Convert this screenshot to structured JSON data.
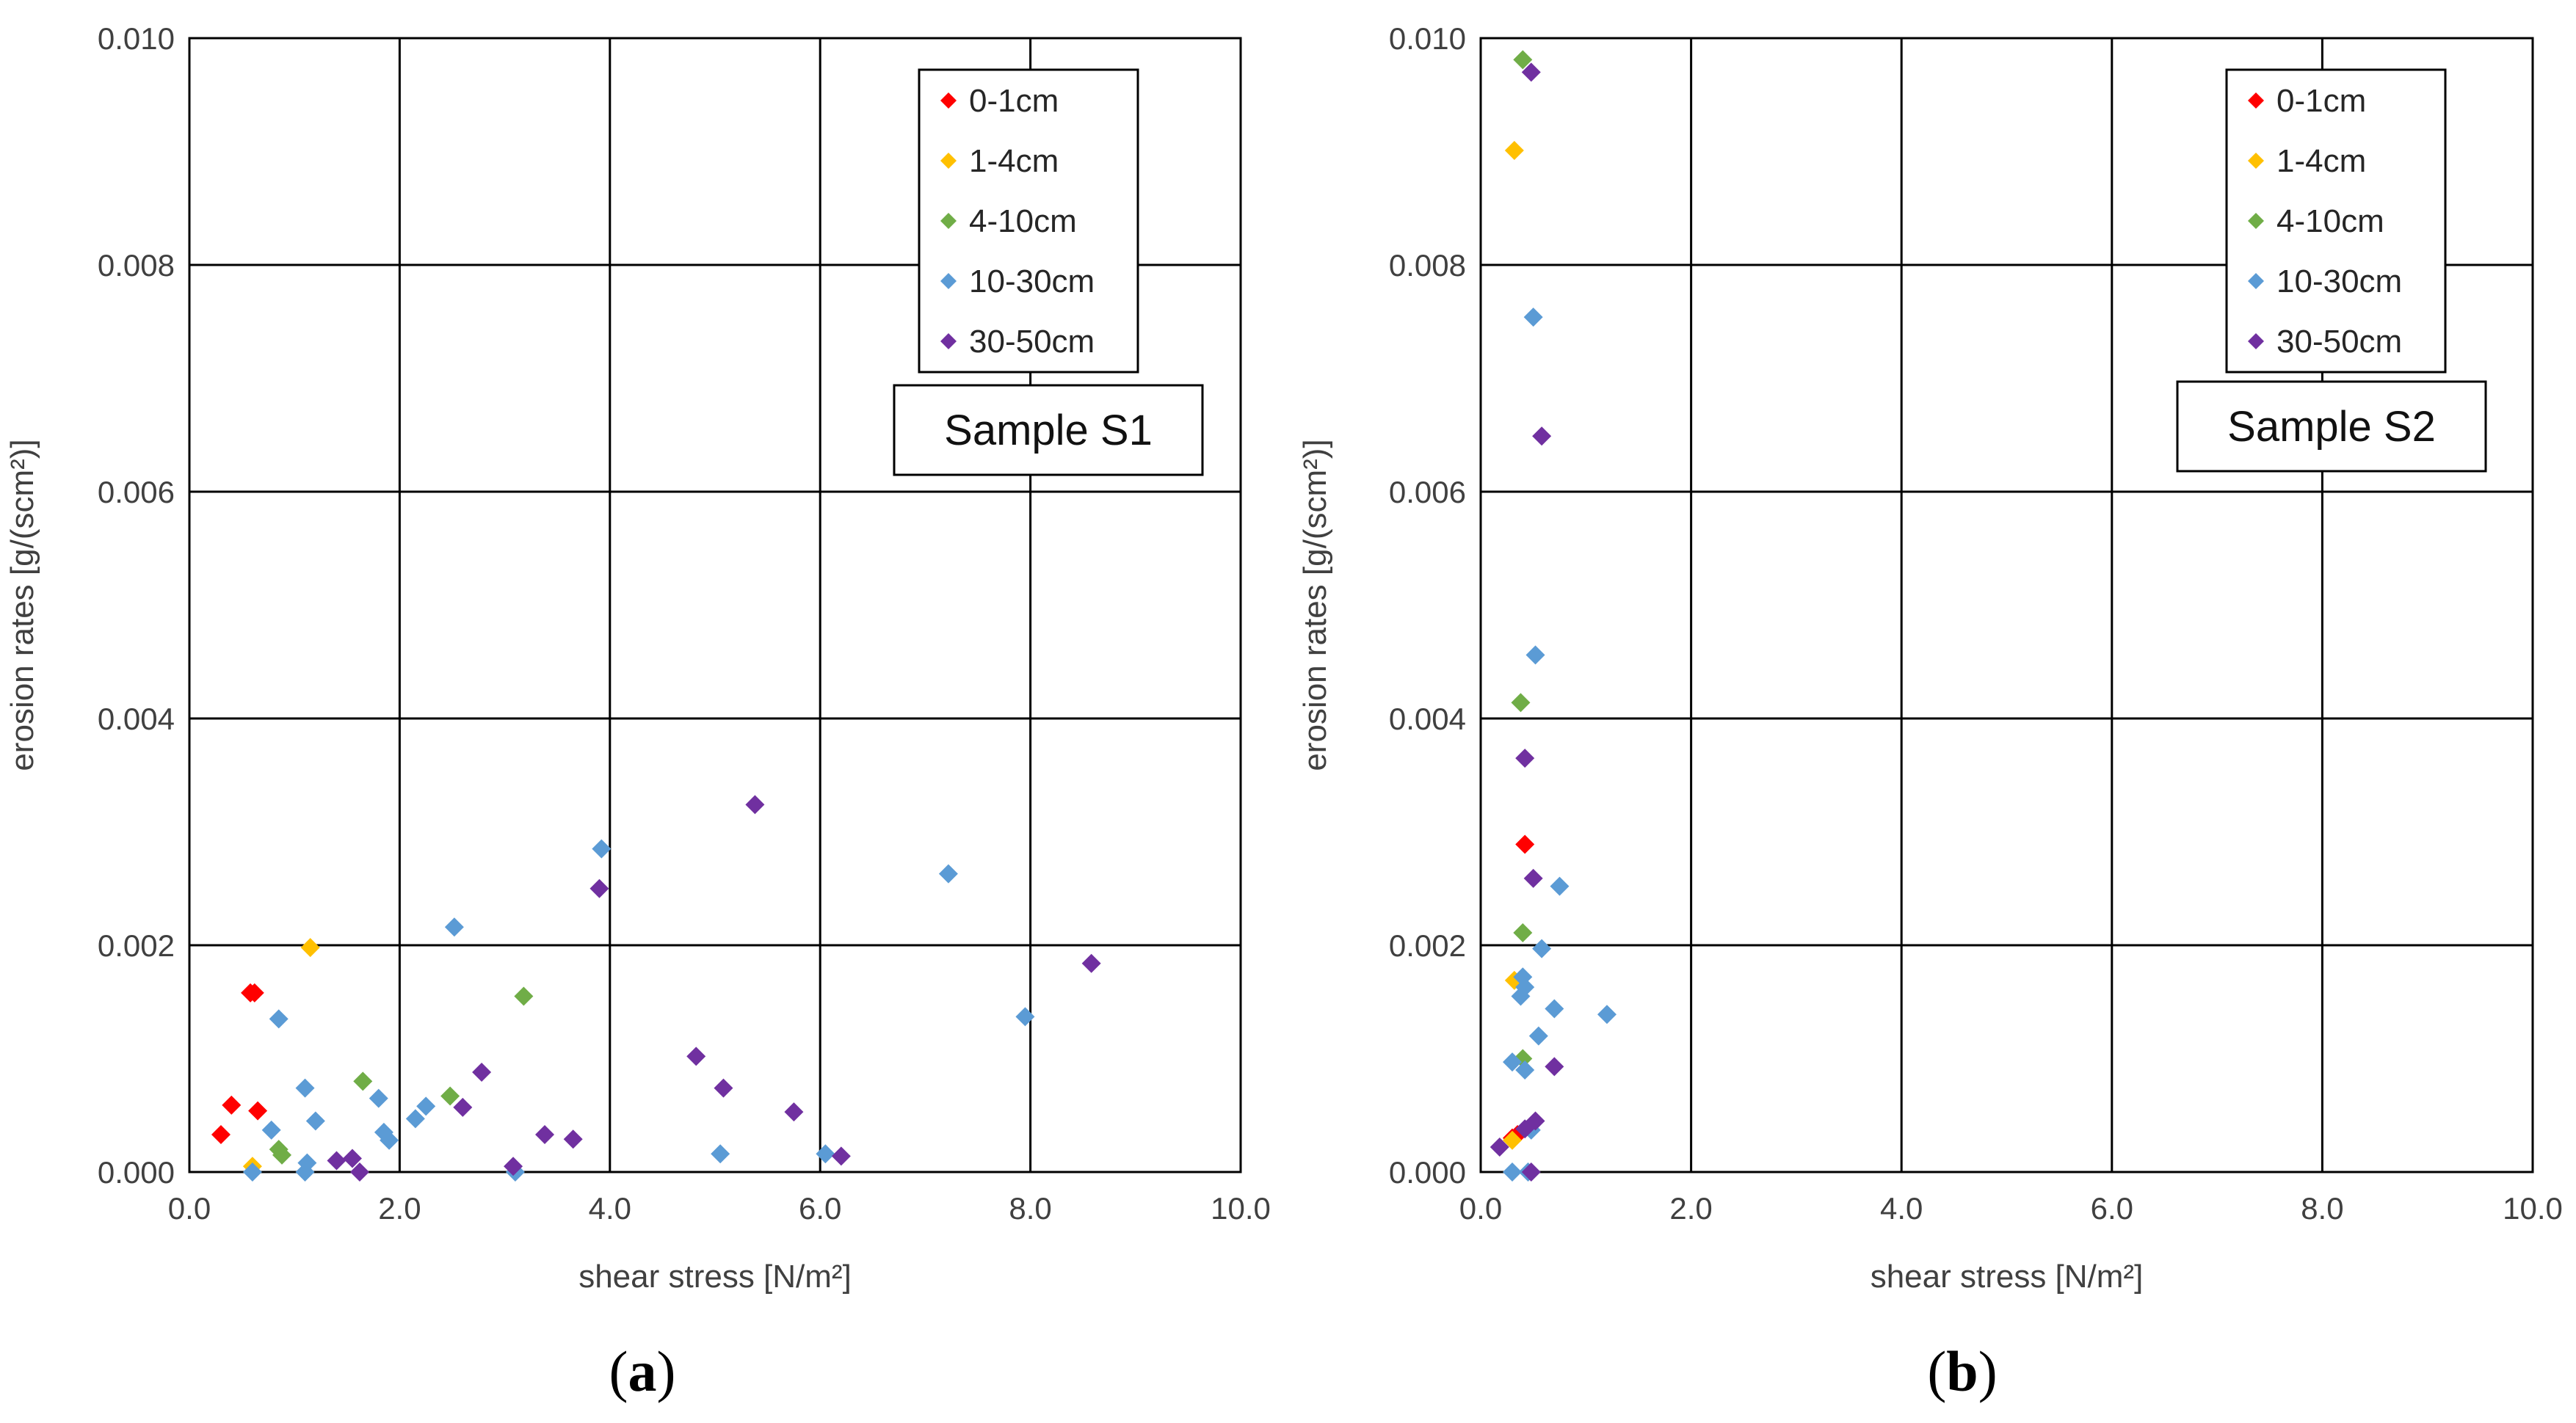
{
  "chart_data": [
    {
      "type": "scatter",
      "panel_label": "(a)",
      "panel_label_letter": "a",
      "annotation": "Sample S1",
      "xlabel": "shear stress [N/m²]",
      "ylabel": "erosion rates [g/(scm²)]",
      "xlim": [
        0,
        10
      ],
      "ylim": [
        0,
        0.01
      ],
      "x_ticks": [
        "0.0",
        "2.0",
        "4.0",
        "6.0",
        "8.0",
        "10.0"
      ],
      "y_ticks": [
        "0.000",
        "0.002",
        "0.004",
        "0.006",
        "0.008",
        "0.010"
      ],
      "grid": true,
      "legend_position": "top-right",
      "series": [
        {
          "name": "0-1cm",
          "color": "#FF0000",
          "points": [
            [
              0.3,
              0.00033
            ],
            [
              0.4,
              0.00059
            ],
            [
              0.58,
              0.00158
            ],
            [
              0.62,
              0.00158
            ],
            [
              0.65,
              0.00054
            ]
          ]
        },
        {
          "name": "1-4cm",
          "color": "#FFC000",
          "points": [
            [
              1.15,
              0.00198
            ],
            [
              0.6,
              5e-05
            ]
          ]
        },
        {
          "name": "4-10cm",
          "color": "#70AD47",
          "points": [
            [
              0.85,
              0.0002
            ],
            [
              0.88,
              0.00015
            ],
            [
              1.65,
              0.0008
            ],
            [
              2.48,
              0.00067
            ],
            [
              3.18,
              0.00155
            ]
          ]
        },
        {
          "name": "10-30cm",
          "color": "#5B9BD5",
          "points": [
            [
              0.6,
              0.0
            ],
            [
              0.78,
              0.00037
            ],
            [
              0.85,
              0.00135
            ],
            [
              1.1,
              0.00074
            ],
            [
              1.1,
              0.0
            ],
            [
              1.12,
              8e-05
            ],
            [
              1.2,
              0.00045
            ],
            [
              1.8,
              0.00065
            ],
            [
              1.85,
              0.00035
            ],
            [
              1.9,
              0.00028
            ],
            [
              2.15,
              0.00047
            ],
            [
              2.25,
              0.00058
            ],
            [
              2.52,
              0.00216
            ],
            [
              3.1,
              0.0
            ],
            [
              3.92,
              0.00285
            ],
            [
              5.05,
              0.00016
            ],
            [
              6.05,
              0.00016
            ],
            [
              7.22,
              0.00263
            ],
            [
              7.95,
              0.00137
            ]
          ]
        },
        {
          "name": "30-50cm",
          "color": "#7030A0",
          "points": [
            [
              1.4,
              0.0001
            ],
            [
              1.55,
              0.00012
            ],
            [
              1.62,
              0.0
            ],
            [
              2.6,
              0.00057
            ],
            [
              2.78,
              0.00088
            ],
            [
              3.08,
              5e-05
            ],
            [
              3.38,
              0.00033
            ],
            [
              3.65,
              0.00029
            ],
            [
              3.9,
              0.0025
            ],
            [
              4.82,
              0.00102
            ],
            [
              5.08,
              0.00074
            ],
            [
              5.38,
              0.00324
            ],
            [
              5.75,
              0.00053
            ],
            [
              6.2,
              0.00014
            ],
            [
              8.58,
              0.00184
            ]
          ]
        }
      ]
    },
    {
      "type": "scatter",
      "panel_label": "(b)",
      "panel_label_letter": "b",
      "annotation": "Sample S2",
      "xlabel": "shear stress [N/m²]",
      "ylabel": "erosion rates [g/(scm²)]",
      "xlim": [
        0,
        10
      ],
      "ylim": [
        0,
        0.01
      ],
      "x_ticks": [
        "0.0",
        "2.0",
        "4.0",
        "6.0",
        "8.0",
        "10.0"
      ],
      "y_ticks": [
        "0.000",
        "0.002",
        "0.004",
        "0.006",
        "0.008",
        "0.010"
      ],
      "grid": true,
      "legend_position": "top-right",
      "series": [
        {
          "name": "0-1cm",
          "color": "#FF0000",
          "points": [
            [
              0.3,
              0.0003
            ],
            [
              0.35,
              0.00033
            ],
            [
              0.42,
              0.00289
            ]
          ]
        },
        {
          "name": "1-4cm",
          "color": "#FFC000",
          "points": [
            [
              0.32,
              0.00901
            ],
            [
              0.32,
              0.00169
            ],
            [
              0.3,
              0.00028
            ]
          ]
        },
        {
          "name": "4-10cm",
          "color": "#70AD47",
          "points": [
            [
              0.4,
              0.00981
            ],
            [
              0.38,
              0.00414
            ],
            [
              0.4,
              0.00211
            ],
            [
              0.4,
              0.001
            ]
          ]
        },
        {
          "name": "10-30cm",
          "color": "#5B9BD5",
          "points": [
            [
              0.5,
              0.00754
            ],
            [
              0.52,
              0.00456
            ],
            [
              0.58,
              0.00197
            ],
            [
              0.75,
              0.00252
            ],
            [
              0.4,
              0.00172
            ],
            [
              0.42,
              0.00163
            ],
            [
              0.38,
              0.00155
            ],
            [
              0.55,
              0.0012
            ],
            [
              0.7,
              0.00144
            ],
            [
              1.2,
              0.00139
            ],
            [
              0.3,
              0.00097
            ],
            [
              0.42,
              0.0009
            ],
            [
              0.48,
              0.00037
            ],
            [
              0.3,
              0.0
            ],
            [
              0.45,
              0.0
            ]
          ]
        },
        {
          "name": "30-50cm",
          "color": "#7030A0",
          "points": [
            [
              0.48,
              0.0097
            ],
            [
              0.58,
              0.00649
            ],
            [
              0.42,
              0.00365
            ],
            [
              0.5,
              0.00259
            ],
            [
              0.7,
              0.00093
            ],
            [
              0.52,
              0.00045
            ],
            [
              0.42,
              0.00038
            ],
            [
              0.18,
              0.00022
            ],
            [
              0.48,
              0.0
            ]
          ]
        }
      ]
    }
  ]
}
